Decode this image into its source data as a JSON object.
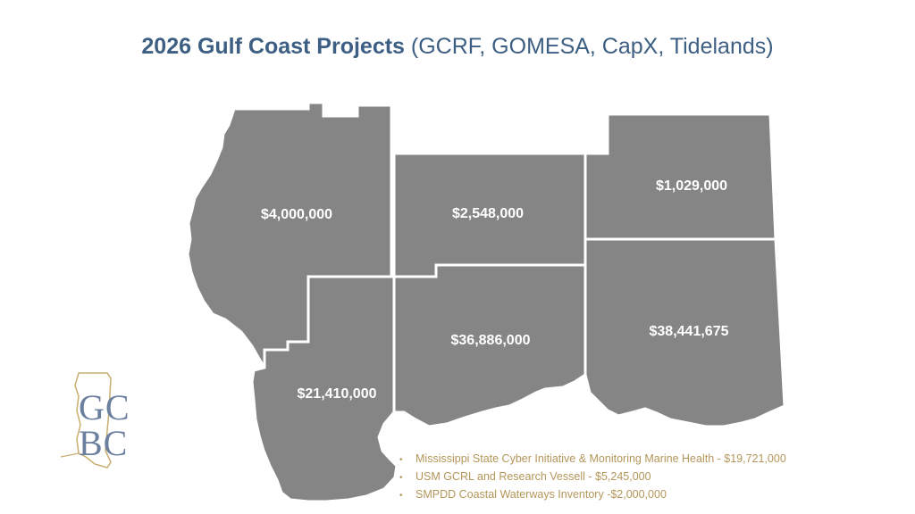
{
  "title": {
    "bold": "2026 Gulf Coast Projects",
    "rest": "(GCRF, GOMESA, CapX, Tidelands)"
  },
  "map": {
    "fill_color": "#858585",
    "border_color": "#ffffff",
    "regions": [
      {
        "id": "northwest",
        "amount": "$4,000,000"
      },
      {
        "id": "north-central",
        "amount": "$2,548,000"
      },
      {
        "id": "northeast",
        "amount": "$1,029,000"
      },
      {
        "id": "southwest",
        "amount": "$21,410,000"
      },
      {
        "id": "south-central",
        "amount": "$36,886,000"
      },
      {
        "id": "southeast",
        "amount": "$38,441,675"
      }
    ]
  },
  "logo": {
    "line1": "GC",
    "line2": "BC",
    "text_color": "#6b7f9e",
    "outline_color": "#c8ad6e"
  },
  "projects": [
    "Mississippi State Cyber Initiative & Monitoring Marine Health - $19,721,000",
    "USM GCRL and Research Vessell - $5,245,000",
    "SMPDD Coastal Waterways Inventory -$2,000,000"
  ],
  "bullet_color": "#b4965a"
}
